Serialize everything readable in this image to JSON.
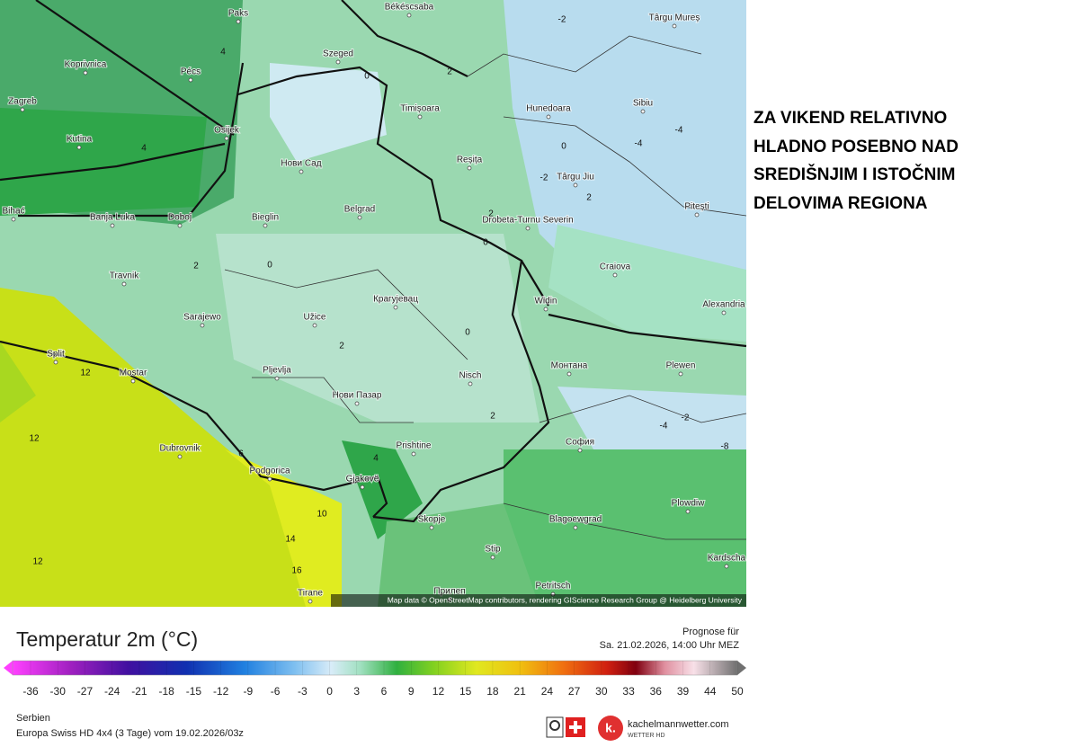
{
  "map": {
    "attribution": "Map data © OpenStreetMap contributors, rendering GIScience Research Group @ Heidelberg University",
    "cities": [
      "Paks",
      "Békéscsaba",
      "Târgu Mureș",
      "Koprivnica",
      "Pécs",
      "Szeged",
      "Zagreb",
      "Timișoara",
      "Hunedoara",
      "Sibiu",
      "Kutina",
      "Osijek",
      "Нови Сад",
      "Reșița",
      "Târgu Jiu",
      "Pitești",
      "Bihać",
      "Banja Luka",
      "Doboj",
      "Bieglin",
      "Belgrad",
      "Drobeta-Turnu Severin",
      "Craiova",
      "Travnik",
      "Sarajewo",
      "Крагујевац",
      "Užice",
      "Widin",
      "Alexandria",
      "Split",
      "Mostar",
      "Pljevlja",
      "Нови Пазар",
      "Nisch",
      "Монтана",
      "Plewen",
      "Dubrovnik",
      "Prishtine",
      "София",
      "Podgorica",
      "Gjakovë",
      "Plowdiw",
      "Skopje",
      "Blagoewgrad",
      "Stip",
      "Petritsch",
      "Kardscha",
      "Tirane",
      "Прилеп"
    ],
    "contour_labels": [
      "-2",
      "2",
      "4",
      "4",
      "0",
      "2",
      "0",
      "-2",
      "2",
      "-4",
      "-4",
      "0",
      "2",
      "0",
      "2",
      "12",
      "12",
      "12",
      "16",
      "14",
      "10",
      "-8",
      "-2",
      "-4",
      "2",
      "0",
      "6",
      "4"
    ]
  },
  "headline": [
    "ZA VIKEND RELATIVNO",
    "HLADNO POSEBNO NAD",
    "SREDIŠNJIM I ISTOČNIM",
    "DELOVIMA REGIONA"
  ],
  "footer": {
    "legend_title": "Temperatur 2m (°C)",
    "forecast_label": "Prognose für",
    "forecast_time": "Sa. 21.02.2026, 14:00 Uhr MEZ",
    "legend_ticks": [
      -36,
      -30,
      -27,
      -24,
      -21,
      -18,
      -15,
      -12,
      -9,
      -6,
      -3,
      0,
      3,
      6,
      9,
      12,
      15,
      18,
      21,
      24,
      27,
      30,
      33,
      36,
      39,
      44,
      50
    ],
    "region": "Serbien",
    "model_run": "Europa Swiss HD 4x4 (3 Tage) vom 19.02.2026/03z",
    "brand": "kachelmannwetter.com",
    "brand_sub": "WETTER HD"
  }
}
